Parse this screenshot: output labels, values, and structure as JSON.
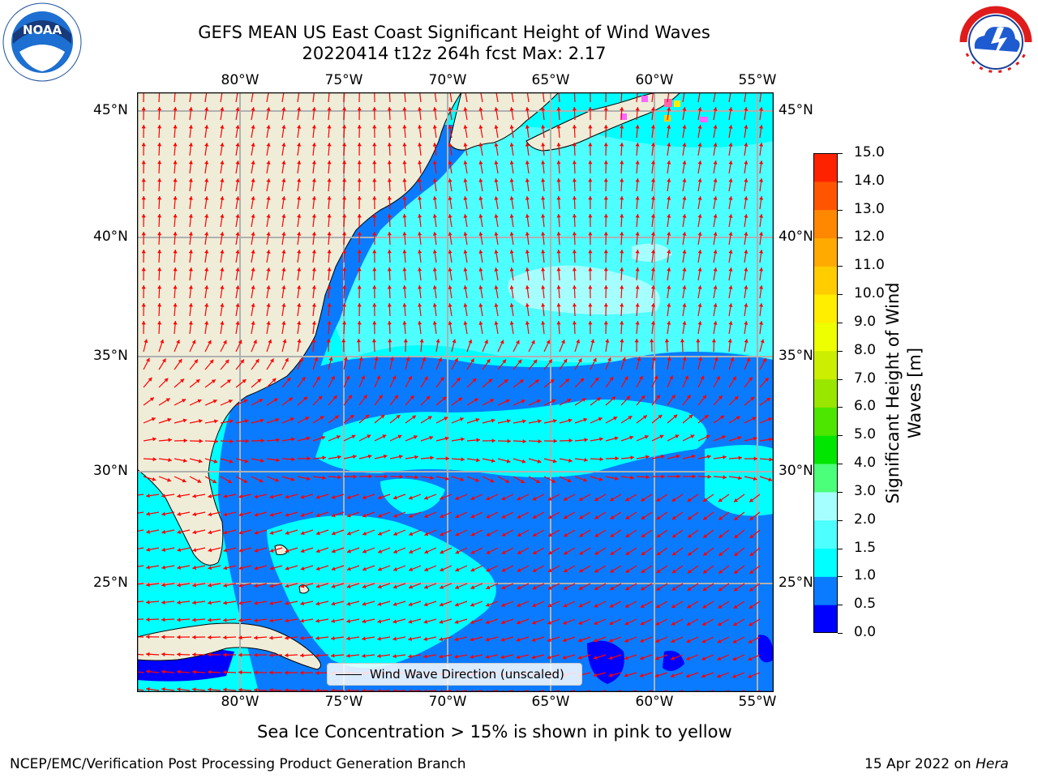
{
  "title": {
    "line1": "GEFS MEAN US East Coast Significant Height of Wind Waves",
    "line2": "20220414 t12z 264h fcst   Max: 2.17"
  },
  "logos": {
    "left": "noaa-logo",
    "left_text": "NOAA",
    "right": "nws-logo",
    "right_text": "NATIONAL WEATHER SERVICE"
  },
  "map": {
    "lon_labels": [
      "80°W",
      "75°W",
      "70°W",
      "65°W",
      "60°W",
      "55°W"
    ],
    "lat_labels": [
      "45°N",
      "40°N",
      "35°N",
      "30°N",
      "25°N"
    ],
    "land_color": "#efedd8",
    "ocean_colors": [
      "#0000ff",
      "#0a7bff",
      "#00ffff",
      "#4dffff",
      "#a6ffff"
    ],
    "arrow_color": "#ff0000",
    "legend": "Wind Wave Direction (unscaled)"
  },
  "colorbar": {
    "ticks": [
      "0.0",
      "0.5",
      "1.0",
      "1.5",
      "2.0",
      "3.0",
      "4.0",
      "5.0",
      "6.0",
      "7.0",
      "8.0",
      "9.0",
      "10.0",
      "11.0",
      "12.0",
      "13.0",
      "14.0",
      "15.0"
    ],
    "colors": [
      "#0000ff",
      "#0a7bff",
      "#00ffff",
      "#4dffff",
      "#a6ffff",
      "#4cff7a",
      "#00e600",
      "#4ce600",
      "#99e600",
      "#ccee00",
      "#eeff00",
      "#ffee00",
      "#ffcc00",
      "#ffaa00",
      "#ff8800",
      "#ff5500",
      "#ff2200",
      "#ff0000"
    ],
    "label_line1": "Significant Height of Wind",
    "label_line2": "Waves [m]"
  },
  "note": "Sea Ice Concentration > 15% is shown in pink to yellow",
  "footer": {
    "left": "NCEP/EMC/Verification Post Processing Product Generation Branch",
    "right_prefix": "15 Apr 2022 on ",
    "right_host": "Hera"
  }
}
